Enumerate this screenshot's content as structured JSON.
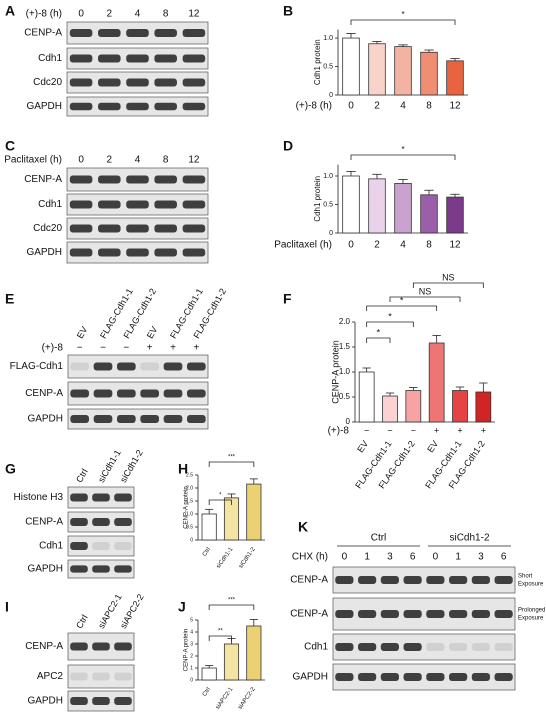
{
  "panel_labels": [
    "A",
    "B",
    "C",
    "D",
    "E",
    "F",
    "G",
    "H",
    "I",
    "J",
    "K"
  ],
  "blots": {
    "A": {
      "condition_label": "(+)-8 (h)",
      "lanes": [
        "0",
        "2",
        "4",
        "8",
        "12"
      ],
      "rows": [
        "CENP-A",
        "Cdh1",
        "Cdc20",
        "GAPDH"
      ]
    },
    "C": {
      "condition_label": "Paclitaxel (h)",
      "lanes": [
        "0",
        "2",
        "4",
        "8",
        "12"
      ],
      "rows": [
        "CENP-A",
        "Cdh1",
        "Cdc20",
        "GAPDH"
      ]
    },
    "E": {
      "lanes": [
        "EV",
        "FLAG-Cdh1-1",
        "FLAG-Cdh1-2",
        "EV",
        "FLAG-Cdh1-1",
        "FLAG-Cdh1-2"
      ],
      "treatment_label": "(+)-8",
      "treatment": [
        "−",
        "−",
        "−",
        "+",
        "+",
        "+"
      ],
      "rows": [
        "FLAG-Cdh1",
        "CENP-A",
        "GAPDH"
      ]
    },
    "G": {
      "lanes": [
        "Ctrl",
        "siCdh1-1",
        "siCdh1-2"
      ],
      "rows": [
        "Histone H3",
        "CENP-A",
        "Cdh1",
        "GAPDH"
      ]
    },
    "I": {
      "lanes": [
        "Ctrl",
        "siAPC2-1",
        "siAPC2-2"
      ],
      "rows": [
        "CENP-A",
        "APC2",
        "GAPDH"
      ]
    },
    "K": {
      "groups": [
        "Ctrl",
        "siCdh1-2"
      ],
      "condition_label": "CHX (h)",
      "lanes": [
        "0",
        "1",
        "3",
        "6",
        "0",
        "1",
        "3",
        "6"
      ],
      "rows": [
        "CENP-A",
        "CENP-A",
        "Cdh1",
        "GAPDH"
      ],
      "notes": [
        [
          "Short",
          "Exposure"
        ],
        [
          "Prolonged",
          "Exposure"
        ]
      ]
    }
  },
  "chart_data": [
    {
      "type": "bar",
      "ylabel": "Cdh1 protein",
      "xlabel": "(+)-8 (h)",
      "categories": [
        "0",
        "2",
        "4",
        "8",
        "12"
      ],
      "values": [
        1.0,
        0.9,
        0.85,
        0.75,
        0.6
      ],
      "errors": [
        0.08,
        0.04,
        0.03,
        0.04,
        0.04
      ],
      "colors": [
        "#ffffff",
        "#f8d3ca",
        "#f4b3a2",
        "#ef8e72",
        "#e8643e"
      ],
      "ylim": [
        0,
        1.15
      ],
      "yticks": [
        0,
        0.5,
        {
          "value": 1,
          "label": "1.0"
        }
      ],
      "significance": [
        {
          "from": 0,
          "to": 4,
          "label": "*"
        }
      ]
    },
    {
      "type": "bar",
      "ylabel": "Cdh1 protein",
      "xlabel": "Paclitaxel (h)",
      "categories": [
        "0",
        "2",
        "4",
        "8",
        "12"
      ],
      "values": [
        1.0,
        0.95,
        0.87,
        0.67,
        0.63
      ],
      "errors": [
        0.08,
        0.08,
        0.07,
        0.08,
        0.05
      ],
      "colors": [
        "#ffffff",
        "#ead3ea",
        "#c9a2cf",
        "#9b5ea9",
        "#7b3a8b"
      ],
      "ylim": [
        0,
        1.2
      ],
      "yticks": [
        0,
        0.5,
        {
          "value": 1,
          "label": "1.0"
        }
      ],
      "significance": [
        {
          "from": 0,
          "to": 4,
          "label": "*"
        }
      ]
    },
    {
      "type": "bar",
      "ylabel": "CENP-A protein",
      "treatment_label": "(+)-8",
      "treatment": [
        "−",
        "−",
        "−",
        "+",
        "+",
        "+"
      ],
      "categories": [
        "EV",
        "FLAG-Cdh1-1",
        "FLAG-Cdh1-2",
        "EV",
        "FLAG-Cdh1-1",
        "FLAG-Cdh1-2"
      ],
      "values": [
        1.0,
        0.52,
        0.63,
        1.58,
        0.63,
        0.6
      ],
      "errors": [
        0.08,
        0.06,
        0.06,
        0.15,
        0.07,
        0.18
      ],
      "colors": [
        "#ffffff",
        "#fbd2d2",
        "#f5a3a3",
        "#ef7474",
        "#e64444",
        "#d12424"
      ],
      "ylim": [
        0,
        2
      ],
      "yticks": [
        0,
        0.5,
        {
          "value": 1,
          "label": "1.0"
        },
        1.5,
        {
          "value": 2,
          "label": "2.0"
        }
      ],
      "significance": [
        {
          "from": 0,
          "to": 1,
          "label": "*"
        },
        {
          "from": 0,
          "to": 2,
          "label": "*"
        },
        {
          "from": 0,
          "to": 3,
          "label": "*"
        },
        {
          "from": 1,
          "to": 4,
          "label": "NS"
        },
        {
          "from": 2,
          "to": 5,
          "label": "NS"
        }
      ]
    },
    {
      "type": "bar",
      "ylabel": "CENP-A protein",
      "categories": [
        "Ctrl",
        "siCdh1-1",
        "siCdh1-2"
      ],
      "values": [
        1.0,
        1.62,
        2.15
      ],
      "errors": [
        0.18,
        0.15,
        0.2
      ],
      "colors": [
        "#ffffff",
        "#f4e4a4",
        "#ecd172"
      ],
      "ylim": [
        0,
        2.5
      ],
      "yticks": [
        0,
        0.5,
        {
          "value": 1,
          "label": "1.0"
        },
        1.5,
        {
          "value": 2,
          "label": "2.0"
        },
        2.5
      ],
      "significance": [
        {
          "from": 0,
          "to": 1,
          "label": "*"
        },
        {
          "from": 0,
          "to": 2,
          "label": "***"
        }
      ]
    },
    {
      "type": "bar",
      "ylabel": "CENP-A protein",
      "categories": [
        "Ctrl",
        "siAPC2-1",
        "siAPC2-2"
      ],
      "values": [
        1.0,
        3.0,
        4.5
      ],
      "errors": [
        0.2,
        0.45,
        0.55
      ],
      "colors": [
        "#ffffff",
        "#f4e4a4",
        "#ecd172"
      ],
      "ylim": [
        0,
        5
      ],
      "yticks": [
        0,
        1,
        2,
        3,
        4,
        5
      ],
      "significance": [
        {
          "from": 0,
          "to": 1,
          "label": "**"
        },
        {
          "from": 0,
          "to": 2,
          "label": "***"
        }
      ]
    }
  ]
}
